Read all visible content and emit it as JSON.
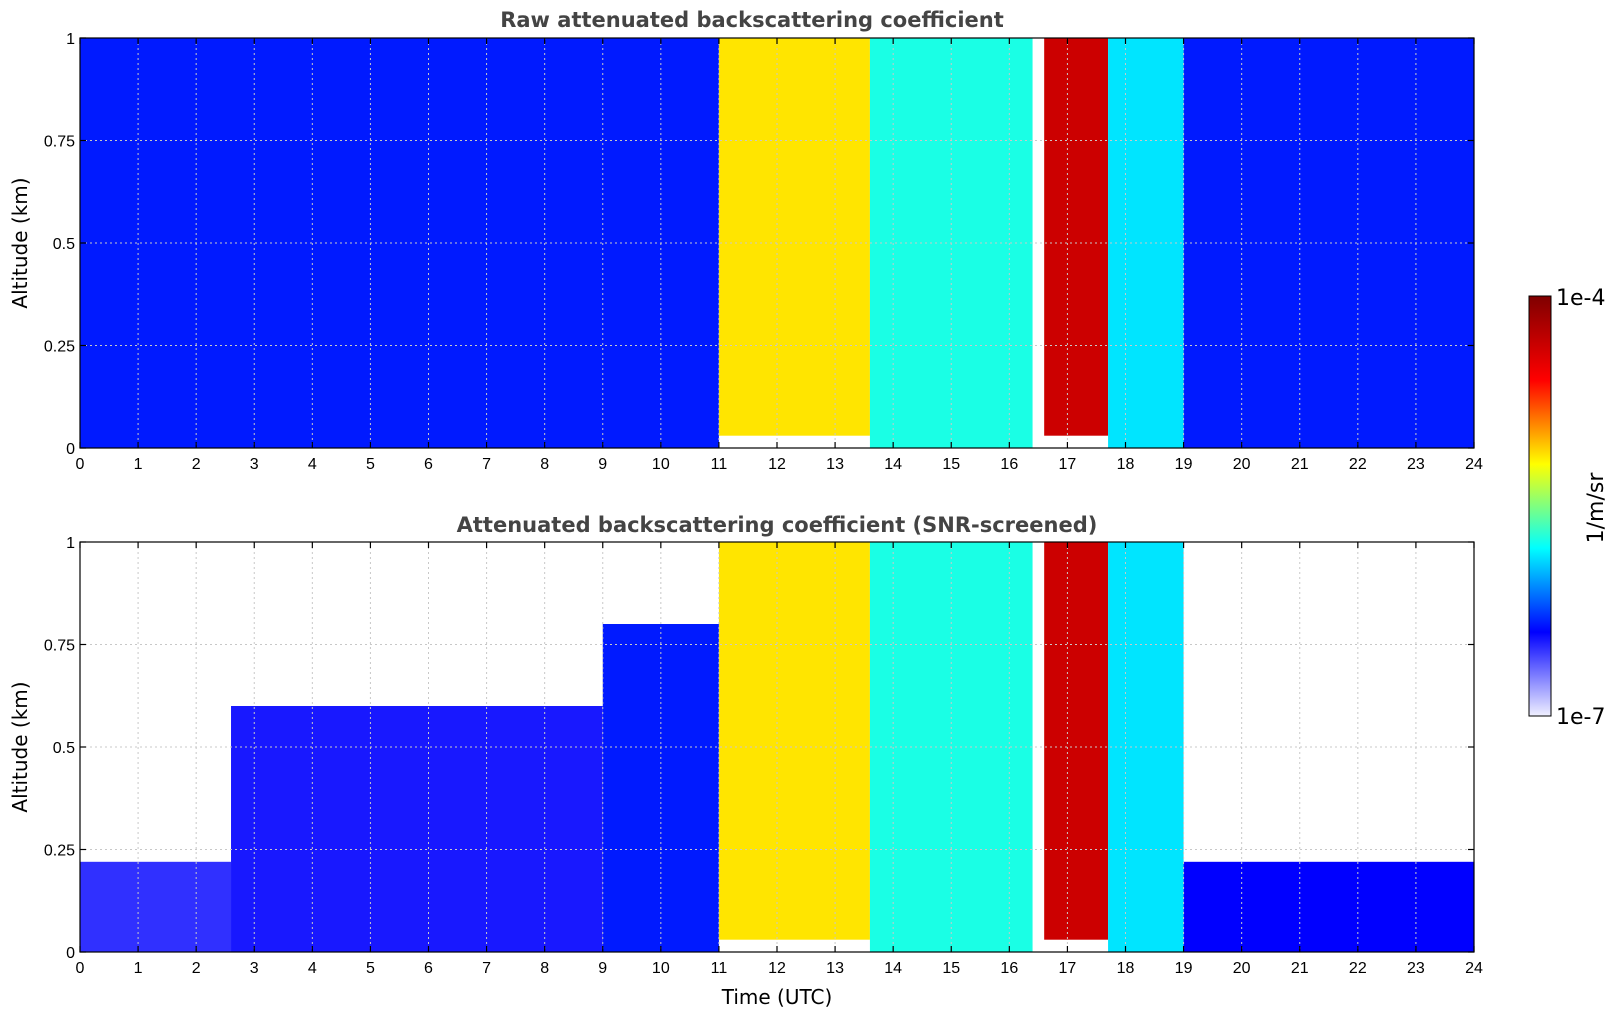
{
  "chart_data": [
    {
      "type": "heatmap",
      "title": "Raw attenuated backscattering coefficient",
      "xlabel": "",
      "ylabel": "Altitude (km)",
      "xlim": [
        0,
        24
      ],
      "ylim": [
        0,
        1
      ],
      "x_ticks": [
        "0",
        "1",
        "2",
        "3",
        "4",
        "5",
        "6",
        "7",
        "8",
        "9",
        "10",
        "11",
        "12",
        "13",
        "14",
        "15",
        "16",
        "17",
        "18",
        "19",
        "20",
        "21",
        "22",
        "23",
        "24"
      ],
      "y_ticks": [
        "0",
        "0.25",
        "0.5",
        "0.75",
        "1"
      ],
      "grid": true,
      "regions": [
        {
          "x": [
            0,
            11
          ],
          "y": [
            0,
            1
          ],
          "level": 0.22
        },
        {
          "x": [
            11,
            13.6
          ],
          "y": [
            0.03,
            1
          ],
          "level": 0.62
        },
        {
          "x": [
            13.6,
            16.4
          ],
          "y": [
            0,
            1
          ],
          "level": 0.42
        },
        {
          "x": [
            16.6,
            17.7
          ],
          "y": [
            0.03,
            1
          ],
          "level": 0.88
        },
        {
          "x": [
            17.7,
            19
          ],
          "y": [
            0,
            1
          ],
          "level": 0.38
        },
        {
          "x": [
            19,
            24
          ],
          "y": [
            0,
            1
          ],
          "level": 0.22
        }
      ]
    },
    {
      "type": "heatmap",
      "title": "Attenuated backscattering coefficient (SNR-screened)",
      "xlabel": "Time (UTC)",
      "ylabel": "Altitude (km)",
      "xlim": [
        0,
        24
      ],
      "ylim": [
        0,
        1
      ],
      "x_ticks": [
        "0",
        "1",
        "2",
        "3",
        "4",
        "5",
        "6",
        "7",
        "8",
        "9",
        "10",
        "11",
        "12",
        "13",
        "14",
        "15",
        "16",
        "17",
        "18",
        "19",
        "20",
        "21",
        "22",
        "23",
        "24"
      ],
      "y_ticks": [
        "0",
        "0.25",
        "0.5",
        "0.75",
        "1"
      ],
      "grid": true,
      "regions": [
        {
          "x": [
            0,
            2.6
          ],
          "y": [
            0,
            0.22
          ],
          "level": 0.16
        },
        {
          "x": [
            2.6,
            9
          ],
          "y": [
            0,
            0.6
          ],
          "level": 0.18
        },
        {
          "x": [
            9,
            11
          ],
          "y": [
            0,
            0.8
          ],
          "level": 0.22
        },
        {
          "x": [
            11,
            13.6
          ],
          "y": [
            0.03,
            1
          ],
          "level": 0.62
        },
        {
          "x": [
            13.6,
            16.4
          ],
          "y": [
            0,
            1
          ],
          "level": 0.42
        },
        {
          "x": [
            16.6,
            17.7
          ],
          "y": [
            0.03,
            1
          ],
          "level": 0.88
        },
        {
          "x": [
            17.7,
            19
          ],
          "y": [
            0,
            1
          ],
          "level": 0.38
        },
        {
          "x": [
            19,
            24
          ],
          "y": [
            0,
            0.22
          ],
          "level": 0.2
        }
      ]
    }
  ],
  "colorbar": {
    "max_label": "1e-4",
    "min_label": "1e-7",
    "unit_label": "1/m/sr",
    "scale": "log",
    "colormap": [
      "#f0f0ff",
      "#0000ff",
      "#00ffff",
      "#ffff00",
      "#ff0000",
      "#7f0000"
    ]
  }
}
